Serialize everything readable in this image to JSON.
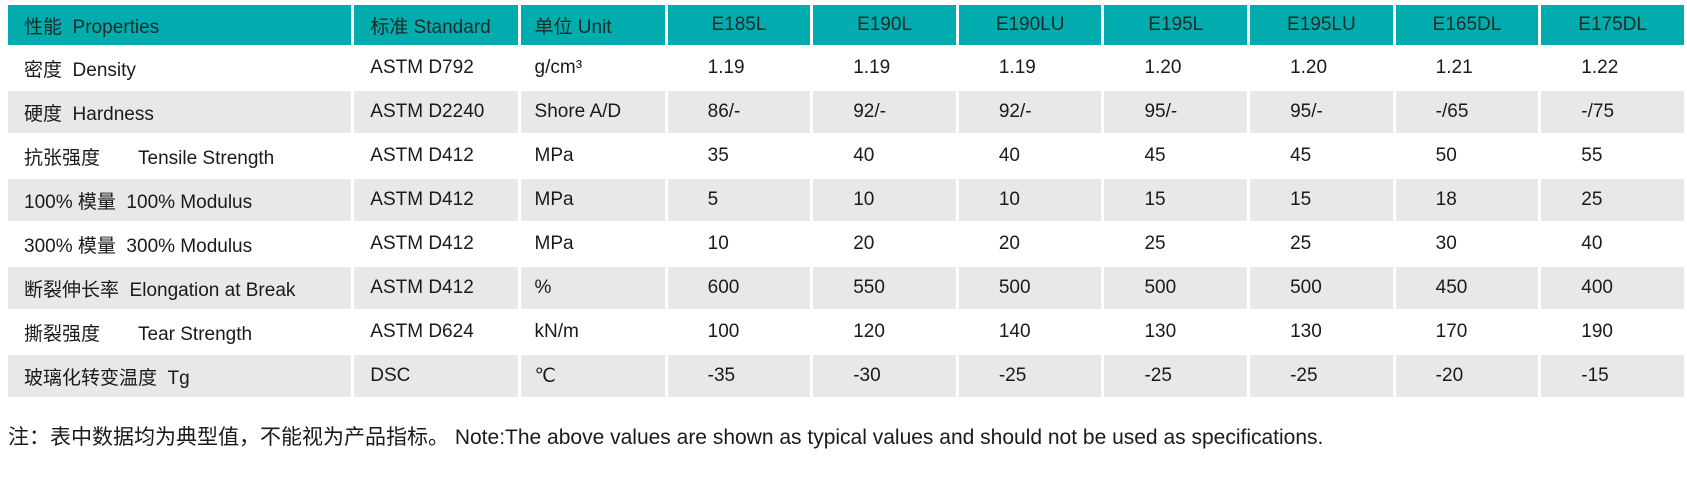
{
  "colors": {
    "header_bg": "#00acae",
    "row_alt_bg": "#e8e8e8",
    "row_bg": "#ffffff",
    "text": "#1a1a1a"
  },
  "table": {
    "headers": [
      "性能  Properties",
      "标准 Standard",
      "单位 Unit",
      "E185L",
      "E190L",
      "E190LU",
      "E195L",
      "E195LU",
      "E165DL",
      "E175DL"
    ],
    "rows": [
      {
        "cells": [
          "密度  Density",
          "ASTM D792",
          "g/cm³",
          "1.19",
          "1.19",
          "1.19",
          "1.20",
          "1.20",
          "1.21",
          "1.22"
        ]
      },
      {
        "cells": [
          "硬度  Hardness",
          "ASTM D2240",
          "Shore A/D",
          "86/-",
          "92/-",
          "92/-",
          "95/-",
          "95/-",
          "-/65",
          "-/75"
        ]
      },
      {
        "cells": [
          "抗张强度　　Tensile Strength",
          "ASTM D412",
          "MPa",
          "35",
          "40",
          "40",
          "45",
          "45",
          "50",
          "55"
        ]
      },
      {
        "cells": [
          "100% 模量  100% Modulus",
          "ASTM D412",
          "MPa",
          "5",
          "10",
          "10",
          "15",
          "15",
          "18",
          "25"
        ]
      },
      {
        "cells": [
          "300% 模量  300% Modulus",
          "ASTM D412",
          "MPa",
          "10",
          "20",
          "20",
          "25",
          "25",
          "30",
          "40"
        ]
      },
      {
        "cells": [
          "断裂伸长率  Elongation at Break",
          "ASTM D412",
          "%",
          "600",
          "550",
          "500",
          "500",
          "500",
          "450",
          "400"
        ]
      },
      {
        "cells": [
          "撕裂强度　　Tear Strength",
          "ASTM D624",
          "kN/m",
          "100",
          "120",
          "140",
          "130",
          "130",
          "170",
          "190"
        ]
      },
      {
        "cells": [
          "玻璃化转变温度  Tg",
          "DSC",
          "℃",
          "-35",
          "-30",
          "-25",
          "-25",
          "-25",
          "-20",
          "-15"
        ]
      }
    ]
  },
  "note": "注：表中数据均为典型值，不能视为产品指标。 Note:The above values are shown as typical values and should not be used as specifications."
}
